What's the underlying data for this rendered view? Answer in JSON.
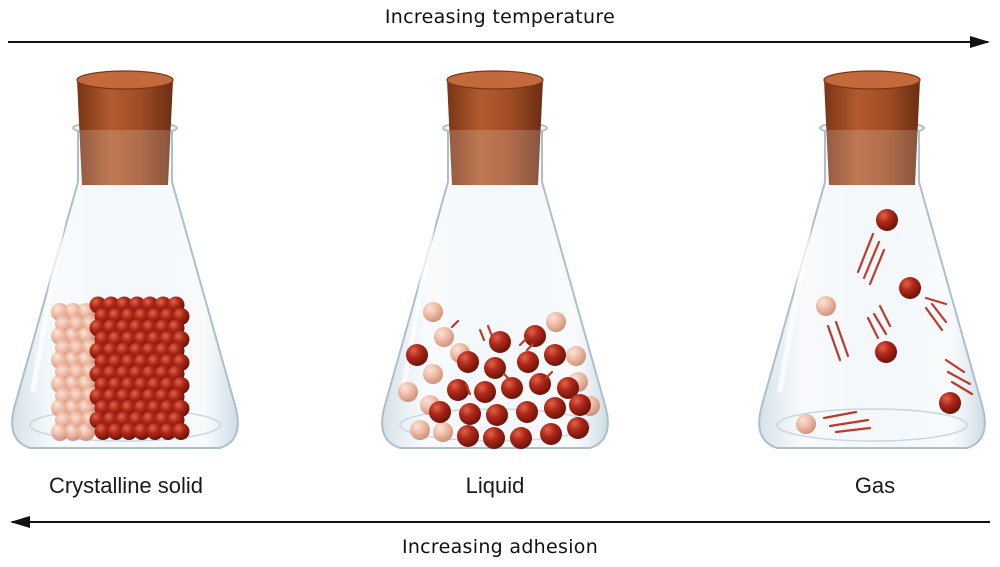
{
  "top_arrow": {
    "label": "Increasing temperature",
    "direction": "right"
  },
  "bottom_arrow": {
    "label": "Increasing adhesion",
    "direction": "left"
  },
  "flasks": [
    {
      "id": "solid",
      "caption": "Crystalline solid",
      "state": "crystalline-solid"
    },
    {
      "id": "liquid",
      "caption": "Liquid",
      "state": "liquid"
    },
    {
      "id": "gas",
      "caption": "Gas",
      "state": "gas"
    }
  ],
  "colors": {
    "cork": "#a4512a",
    "cork_dark": "#6b2e14",
    "particle_dark": "#b0281a",
    "particle_light": "#e9a98e",
    "glass": "#e6eff5",
    "glass_edge": "#aebfcc",
    "motion_line": "#c0392b",
    "arrow": "#111111"
  }
}
